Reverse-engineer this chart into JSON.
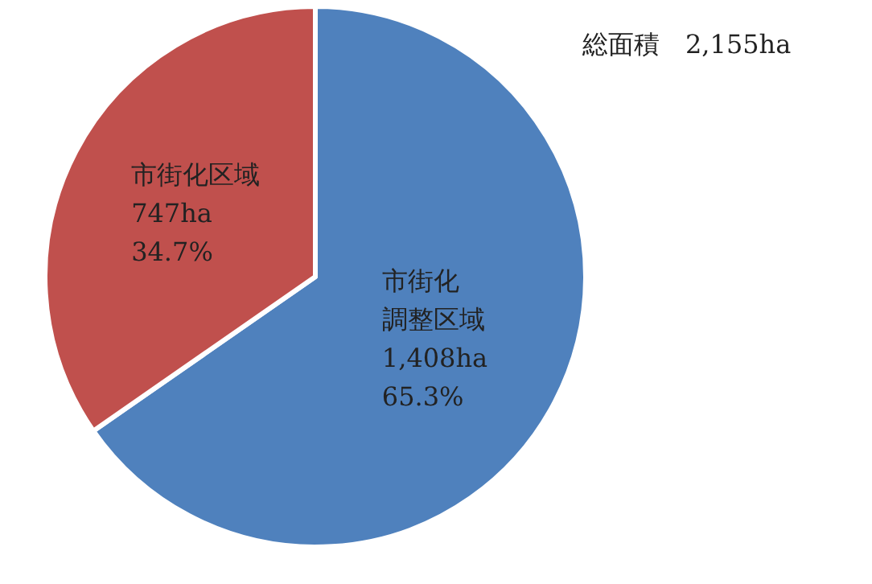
{
  "chart_data": {
    "type": "pie",
    "title": "総面積　2,155ha",
    "categories": [
      "市街化調整区域",
      "市街化区域"
    ],
    "values": [
      1408,
      747
    ],
    "colors": [
      "#4f81bd",
      "#c0504d"
    ],
    "value_labels": [
      "1,408ha\n65.3%",
      "747ha\n34.7%"
    ],
    "legend": false
  }
}
